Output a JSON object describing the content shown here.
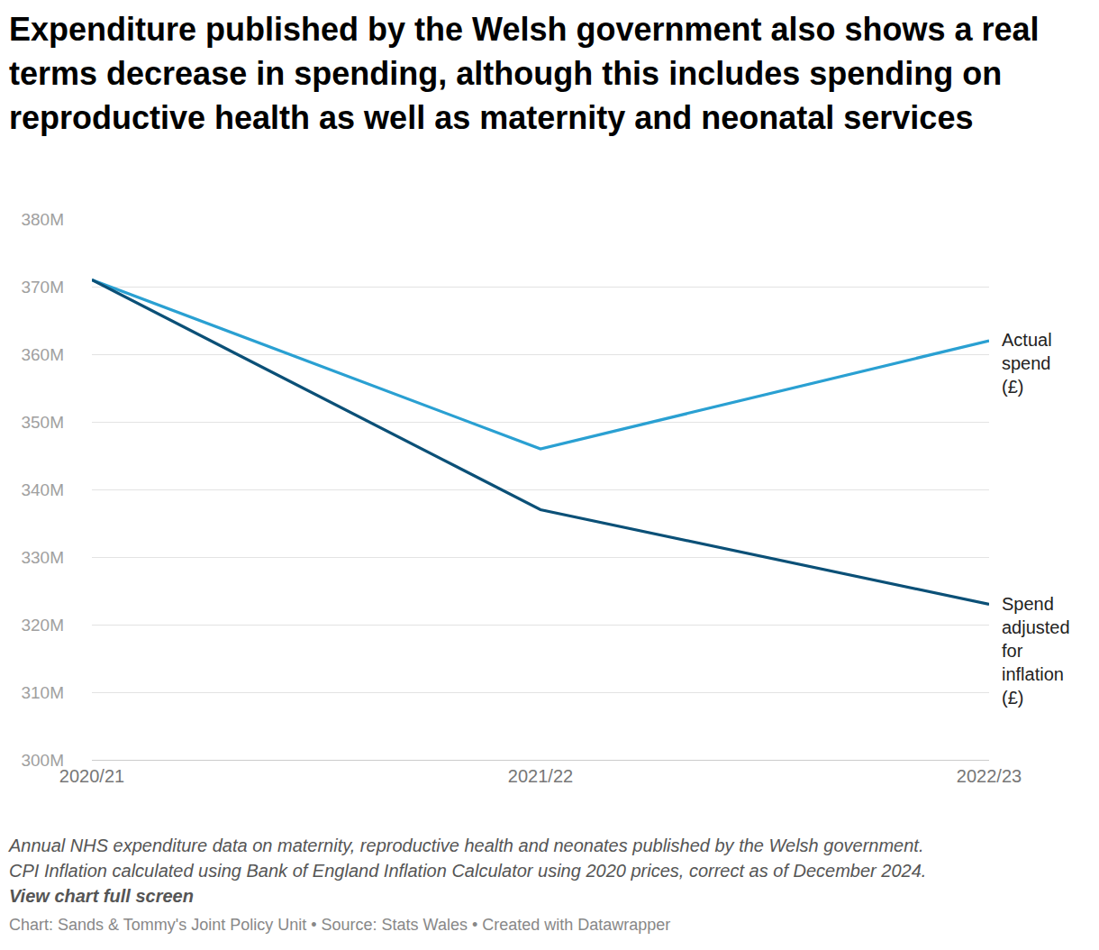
{
  "chart_data": {
    "type": "line",
    "title": "Expenditure published by the Welsh government also shows a real terms decrease in spending, although this includes spending on reproductive health as well as maternity and neonatal services",
    "categories": [
      "2020/21",
      "2021/22",
      "2022/23"
    ],
    "series": [
      {
        "name": "Actual spend (£)",
        "color": "#2aa0d2",
        "values": [
          371,
          346,
          362
        ]
      },
      {
        "name": "Spend adjusted for inflation (£)",
        "color": "#0b5077",
        "values": [
          371,
          337,
          323
        ]
      }
    ],
    "ylim": [
      300,
      380
    ],
    "yticks": [
      {
        "value": 300,
        "label": "300M"
      },
      {
        "value": 310,
        "label": "310M"
      },
      {
        "value": 320,
        "label": "320M"
      },
      {
        "value": 330,
        "label": "330M"
      },
      {
        "value": 340,
        "label": "340M"
      },
      {
        "value": 350,
        "label": "350M"
      },
      {
        "value": 360,
        "label": "360M"
      },
      {
        "value": 370,
        "label": "370M"
      },
      {
        "value": 380,
        "label": "380M"
      }
    ],
    "grid": true,
    "notes": [
      "Annual NHS expenditure data on maternity, reproductive health and neonates published by the Welsh government.",
      "CPI Inflation calculated using Bank of England Inflation Calculator using 2020 prices, correct as of December 2024."
    ],
    "link": "View chart full screen",
    "source": "Chart: Sands & Tommy's Joint Policy Unit • Source: Stats Wales • Created with Datawrapper"
  }
}
